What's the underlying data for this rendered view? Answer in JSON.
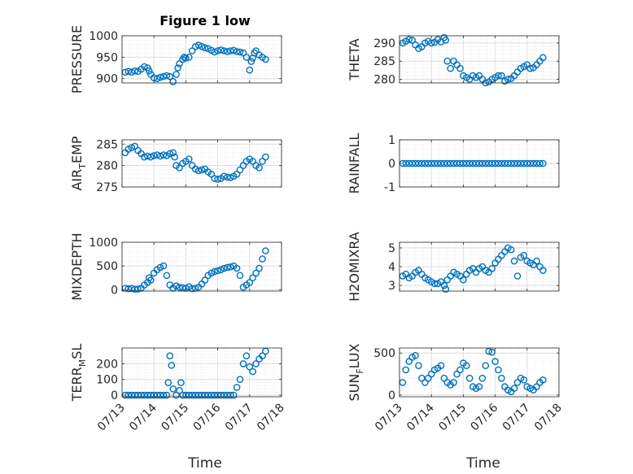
{
  "figure": {
    "title": "Figure 1 low",
    "xlabel": "Time",
    "x_ticks": [
      "07/13",
      "07/14",
      "07/15",
      "07/16",
      "07/17",
      "07/18"
    ],
    "marker_color": "#0072BD"
  },
  "chart_data": [
    {
      "type": "scatter",
      "ylabel": "PRESSURE",
      "ylabel_main": "PRESSURE",
      "ylabel_sub": "",
      "ylabel_rest": "",
      "ylim": [
        890,
        1000
      ],
      "yticks": [
        900,
        950,
        1000
      ],
      "xlim": [
        0,
        5
      ],
      "grid": true,
      "x": [
        0.1,
        0.2,
        0.3,
        0.4,
        0.5,
        0.6,
        0.7,
        0.8,
        0.85,
        0.9,
        1.0,
        1.1,
        1.2,
        1.3,
        1.4,
        1.5,
        1.6,
        1.7,
        1.75,
        1.8,
        1.9,
        1.95,
        2.0,
        2.1,
        2.2,
        2.3,
        2.4,
        2.5,
        2.6,
        2.7,
        2.8,
        2.9,
        3.0,
        3.1,
        3.2,
        3.3,
        3.4,
        3.5,
        3.6,
        3.7,
        3.8,
        3.9,
        4.0,
        4.05,
        4.1,
        4.15,
        4.2,
        4.3,
        4.4,
        4.5
      ],
      "y": [
        915,
        917,
        915,
        918,
        917,
        922,
        928,
        925,
        918,
        910,
        902,
        900,
        903,
        905,
        907,
        905,
        893,
        910,
        925,
        935,
        945,
        950,
        948,
        950,
        965,
        975,
        978,
        975,
        972,
        970,
        966,
        962,
        965,
        967,
        965,
        963,
        965,
        966,
        963,
        962,
        960,
        950,
        920,
        940,
        948,
        960,
        965,
        955,
        950,
        945
      ]
    },
    {
      "type": "scatter",
      "ylabel": "THETA",
      "ylabel_main": "THETA",
      "ylabel_sub": "",
      "ylabel_rest": "",
      "ylim": [
        279,
        292
      ],
      "yticks": [
        280,
        285,
        290
      ],
      "xlim": [
        0,
        5
      ],
      "grid": true,
      "x": [
        0.1,
        0.2,
        0.3,
        0.4,
        0.5,
        0.6,
        0.7,
        0.8,
        0.9,
        1.0,
        1.1,
        1.2,
        1.3,
        1.4,
        1.45,
        1.5,
        1.6,
        1.7,
        1.8,
        1.9,
        2.0,
        2.1,
        2.2,
        2.3,
        2.4,
        2.5,
        2.6,
        2.7,
        2.8,
        2.9,
        3.0,
        3.1,
        3.2,
        3.3,
        3.4,
        3.5,
        3.6,
        3.7,
        3.8,
        3.9,
        4.0,
        4.1,
        4.2,
        4.3,
        4.4,
        4.5
      ],
      "y": [
        290,
        290.5,
        291,
        290.8,
        289.5,
        288.5,
        289,
        290,
        290.5,
        290,
        290.2,
        291,
        290.3,
        291.5,
        290.8,
        285,
        283,
        285,
        284,
        283,
        281,
        280.5,
        280,
        281,
        280.5,
        281,
        280,
        279,
        279.3,
        280,
        280.5,
        281,
        281,
        279.5,
        280,
        280.2,
        281,
        282,
        283,
        283.5,
        284,
        283,
        283.2,
        284,
        285,
        286
      ]
    },
    {
      "type": "scatter",
      "ylabel": "AIR_TEMP",
      "ylabel_main": "AIR",
      "ylabel_sub": "T",
      "ylabel_rest": "EMP",
      "ylim": [
        275,
        286
      ],
      "yticks": [
        275,
        280,
        285
      ],
      "xlim": [
        0,
        5
      ],
      "grid": true,
      "x": [
        0.1,
        0.2,
        0.3,
        0.4,
        0.5,
        0.6,
        0.7,
        0.8,
        0.9,
        1.0,
        1.1,
        1.2,
        1.3,
        1.4,
        1.5,
        1.6,
        1.65,
        1.7,
        1.8,
        1.9,
        2.0,
        2.1,
        2.2,
        2.3,
        2.4,
        2.5,
        2.6,
        2.7,
        2.8,
        2.9,
        3.0,
        3.1,
        3.2,
        3.3,
        3.4,
        3.5,
        3.6,
        3.7,
        3.8,
        3.9,
        4.0,
        4.1,
        4.2,
        4.3,
        4.4,
        4.5
      ],
      "y": [
        283,
        283.8,
        284.2,
        284.5,
        283.5,
        282.8,
        282,
        282.2,
        282,
        282.3,
        282.5,
        282.2,
        282.5,
        282.3,
        282.8,
        283,
        282,
        280,
        279.5,
        280.5,
        281,
        281.5,
        280,
        279.2,
        278.8,
        279,
        279.2,
        278.5,
        278,
        277,
        276.8,
        277,
        277.5,
        277.3,
        277.2,
        277.5,
        278,
        279,
        280,
        281,
        281.5,
        281,
        280,
        279.5,
        281,
        282
      ]
    },
    {
      "type": "scatter",
      "ylabel": "RAINFALL",
      "ylabel_main": "RAINFALL",
      "ylabel_sub": "",
      "ylabel_rest": "",
      "ylim": [
        -1,
        1
      ],
      "yticks": [
        -1,
        0,
        1
      ],
      "xlim": [
        0,
        5
      ],
      "grid": true,
      "x": [
        0.1,
        0.2,
        0.3,
        0.4,
        0.5,
        0.6,
        0.7,
        0.8,
        0.9,
        1.0,
        1.1,
        1.2,
        1.3,
        1.4,
        1.5,
        1.6,
        1.7,
        1.8,
        1.9,
        2.0,
        2.1,
        2.2,
        2.3,
        2.4,
        2.5,
        2.6,
        2.7,
        2.8,
        2.9,
        3.0,
        3.1,
        3.2,
        3.3,
        3.4,
        3.5,
        3.6,
        3.7,
        3.8,
        3.9,
        4.0,
        4.1,
        4.2,
        4.3,
        4.4,
        4.5
      ],
      "y": [
        0,
        0,
        0,
        0,
        0,
        0,
        0,
        0,
        0,
        0,
        0,
        0,
        0,
        0,
        0,
        0,
        0,
        0,
        0,
        0,
        0,
        0,
        0,
        0,
        0,
        0,
        0,
        0,
        0,
        0,
        0,
        0,
        0,
        0,
        0,
        0,
        0,
        0,
        0,
        0,
        0,
        0,
        0,
        0,
        0
      ]
    },
    {
      "type": "scatter",
      "ylabel": "MIXDEPTH",
      "ylabel_main": "MIXDEPTH",
      "ylabel_sub": "",
      "ylabel_rest": "",
      "ylim": [
        -30,
        1000
      ],
      "yticks": [
        0,
        500,
        1000
      ],
      "xlim": [
        0,
        5
      ],
      "grid": true,
      "x": [
        0.1,
        0.2,
        0.3,
        0.4,
        0.5,
        0.6,
        0.7,
        0.8,
        0.85,
        0.9,
        1.0,
        1.1,
        1.2,
        1.3,
        1.4,
        1.5,
        1.6,
        1.7,
        1.8,
        1.9,
        2.0,
        2.1,
        2.2,
        2.3,
        2.4,
        2.5,
        2.6,
        2.7,
        2.8,
        2.9,
        3.0,
        3.1,
        3.2,
        3.3,
        3.4,
        3.5,
        3.6,
        3.7,
        3.8,
        3.9,
        4.0,
        4.1,
        4.2,
        4.3,
        4.4,
        4.5
      ],
      "y": [
        30,
        20,
        25,
        10,
        15,
        30,
        100,
        150,
        250,
        200,
        350,
        420,
        470,
        500,
        300,
        100,
        30,
        80,
        50,
        40,
        30,
        60,
        20,
        30,
        50,
        120,
        200,
        300,
        350,
        380,
        400,
        420,
        450,
        470,
        480,
        500,
        450,
        300,
        50,
        100,
        150,
        250,
        350,
        450,
        650,
        820
      ]
    },
    {
      "type": "scatter",
      "ylabel": "H2OMIXRA",
      "ylabel_main": "H2OMIXRA",
      "ylabel_sub": "",
      "ylabel_rest": "",
      "ylim": [
        2.7,
        5.3
      ],
      "yticks": [
        3,
        4,
        5
      ],
      "xlim": [
        0,
        5
      ],
      "grid": true,
      "x": [
        0.1,
        0.2,
        0.3,
        0.4,
        0.5,
        0.6,
        0.7,
        0.8,
        0.9,
        1.0,
        1.1,
        1.2,
        1.3,
        1.4,
        1.45,
        1.5,
        1.6,
        1.7,
        1.8,
        1.9,
        2.0,
        2.1,
        2.2,
        2.3,
        2.4,
        2.5,
        2.6,
        2.7,
        2.8,
        2.9,
        3.0,
        3.1,
        3.2,
        3.3,
        3.4,
        3.5,
        3.6,
        3.7,
        3.8,
        3.9,
        4.0,
        4.1,
        4.2,
        4.3,
        4.4,
        4.5
      ],
      "y": [
        3.5,
        3.6,
        3.4,
        3.5,
        3.7,
        3.8,
        3.6,
        3.4,
        3.3,
        3.2,
        3.1,
        3.1,
        3.2,
        3.0,
        2.8,
        3.3,
        3.5,
        3.7,
        3.6,
        3.5,
        3.3,
        3.6,
        3.8,
        3.9,
        3.7,
        3.9,
        4.0,
        3.8,
        3.7,
        3.9,
        4.2,
        4.4,
        4.6,
        4.8,
        5.0,
        4.9,
        4.3,
        3.5,
        4.5,
        4.6,
        4.3,
        4.2,
        4.1,
        4.3,
        4.0,
        3.8
      ]
    },
    {
      "type": "scatter",
      "ylabel": "TERR_MSL",
      "ylabel_main": "TERR",
      "ylabel_sub": "M",
      "ylabel_rest": "SL",
      "ylim": [
        -10,
        300
      ],
      "yticks": [
        0,
        100,
        200
      ],
      "xlim": [
        0,
        5
      ],
      "grid": true,
      "x": [
        0.1,
        0.2,
        0.3,
        0.4,
        0.5,
        0.6,
        0.7,
        0.8,
        0.9,
        1.0,
        1.1,
        1.2,
        1.3,
        1.4,
        1.45,
        1.5,
        1.55,
        1.6,
        1.7,
        1.8,
        1.85,
        1.9,
        2.0,
        2.1,
        2.2,
        2.3,
        2.4,
        2.5,
        2.6,
        2.7,
        2.8,
        2.9,
        3.0,
        3.1,
        3.2,
        3.3,
        3.4,
        3.5,
        3.6,
        3.7,
        3.8,
        3.9,
        4.0,
        4.1,
        4.2,
        4.3,
        4.4,
        4.5
      ],
      "y": [
        0,
        0,
        0,
        0,
        0,
        0,
        0,
        0,
        0,
        0,
        0,
        0,
        0,
        0,
        80,
        250,
        190,
        40,
        0,
        30,
        80,
        0,
        0,
        0,
        0,
        0,
        0,
        0,
        0,
        0,
        0,
        0,
        0,
        0,
        0,
        0,
        0,
        0,
        50,
        100,
        200,
        250,
        180,
        150,
        200,
        230,
        250,
        280
      ]
    },
    {
      "type": "scatter",
      "ylabel": "SUN_FLUX",
      "ylabel_main": "SUN",
      "ylabel_sub": "F",
      "ylabel_rest": "LUX",
      "ylim": [
        -20,
        560
      ],
      "yticks": [
        0,
        500
      ],
      "xlim": [
        0,
        5
      ],
      "grid": true,
      "x": [
        0.1,
        0.2,
        0.3,
        0.4,
        0.5,
        0.6,
        0.7,
        0.8,
        0.9,
        1.0,
        1.1,
        1.2,
        1.3,
        1.4,
        1.5,
        1.6,
        1.7,
        1.8,
        1.9,
        2.0,
        2.1,
        2.2,
        2.3,
        2.4,
        2.5,
        2.6,
        2.7,
        2.8,
        2.9,
        3.0,
        3.1,
        3.2,
        3.3,
        3.4,
        3.5,
        3.6,
        3.7,
        3.8,
        3.9,
        4.0,
        4.1,
        4.2,
        4.3,
        4.4,
        4.5
      ],
      "y": [
        150,
        300,
        400,
        450,
        470,
        350,
        200,
        150,
        200,
        250,
        300,
        320,
        350,
        200,
        150,
        120,
        150,
        250,
        300,
        380,
        350,
        200,
        100,
        80,
        100,
        200,
        350,
        520,
        510,
        400,
        300,
        200,
        100,
        60,
        40,
        80,
        150,
        200,
        180,
        100,
        80,
        60,
        100,
        150,
        180
      ]
    }
  ]
}
